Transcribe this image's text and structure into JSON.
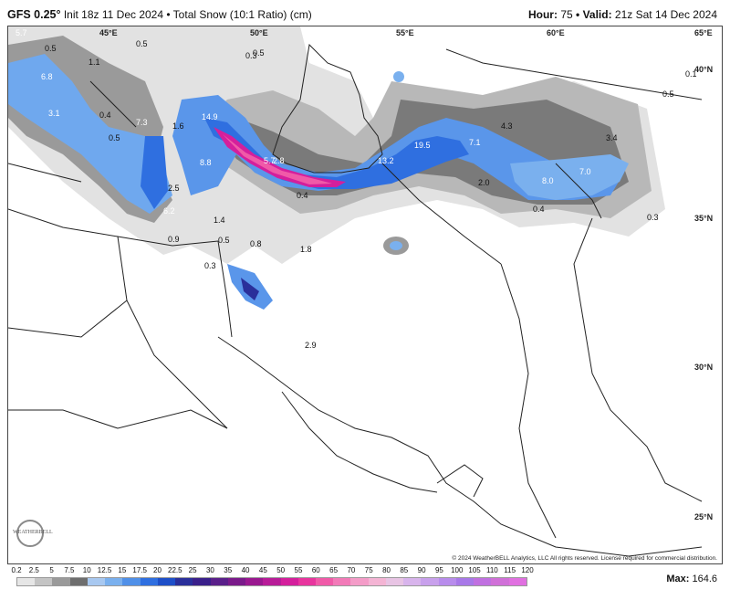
{
  "header": {
    "model": "GFS 0.25°",
    "init": "Init 18z 11 Dec 2024 • Total Snow (10:1 Ratio) (cm)",
    "hour_label": "Hour:",
    "hour_value": "75",
    "valid_label": "• Valid:",
    "valid_value": "21z Sat 14 Dec 2024"
  },
  "coords": {
    "lon45": "45°E",
    "lon50": "50°E",
    "lon55": "55°E",
    "lon60": "60°E",
    "lon65": "65°E",
    "lat40": "40°N",
    "lat35": "35°N",
    "lat30": "30°N",
    "lat25": "25°N"
  },
  "snow_labels": [
    "0.5",
    "0.5",
    "0.5",
    "1.1",
    "6.8",
    "3.1",
    "0.4",
    "7.3",
    "14.9",
    "2.8",
    "0.5",
    "1.6",
    "8.8",
    "5.7",
    "2.5",
    "6.2",
    "0.4",
    "13.2",
    "19.5",
    "7.1",
    "4.3",
    "3.4",
    "8.0",
    "7.0",
    "2.0",
    "0.4",
    "0.3",
    "1.4",
    "0.9",
    "0.5",
    "0.8",
    "1.8",
    "0.3",
    "2.9",
    "0.1",
    "0.5",
    "5.7",
    "0.3"
  ],
  "credit": "© 2024 WeatherBELL Analytics, LLC All rights reserved. License required for commercial distribution.",
  "logo_text": "WEATHERBELL",
  "colorbar": {
    "ticks": [
      "0.2",
      "2.5",
      "5",
      "7.5",
      "10",
      "12.5",
      "15",
      "17.5",
      "20",
      "22.5",
      "25",
      "30",
      "35",
      "40",
      "45",
      "50",
      "55",
      "60",
      "65",
      "70",
      "75",
      "80",
      "85",
      "90",
      "95",
      "100",
      "105",
      "110",
      "115",
      "120"
    ],
    "colors": [
      "#e6e6e6",
      "#c4c4c4",
      "#9a9a9a",
      "#6e6e6e",
      "#a8c8f0",
      "#7ab0ee",
      "#5090e8",
      "#2f6fe0",
      "#1e4fc8",
      "#2a2f9a",
      "#3a1f8a",
      "#5a1f8a",
      "#7a1a8a",
      "#9a1890",
      "#b81c98",
      "#d41f9c",
      "#e8359e",
      "#f05aa8",
      "#f27ab8",
      "#f49cc8",
      "#f4b4d4",
      "#e8c4e4",
      "#d8b4ec",
      "#c8a0ec",
      "#b88cec",
      "#a878e8",
      "#c070e0",
      "#d070d8",
      "#e070e0"
    ],
    "max_label": "Max:",
    "max_value": "164.6"
  }
}
